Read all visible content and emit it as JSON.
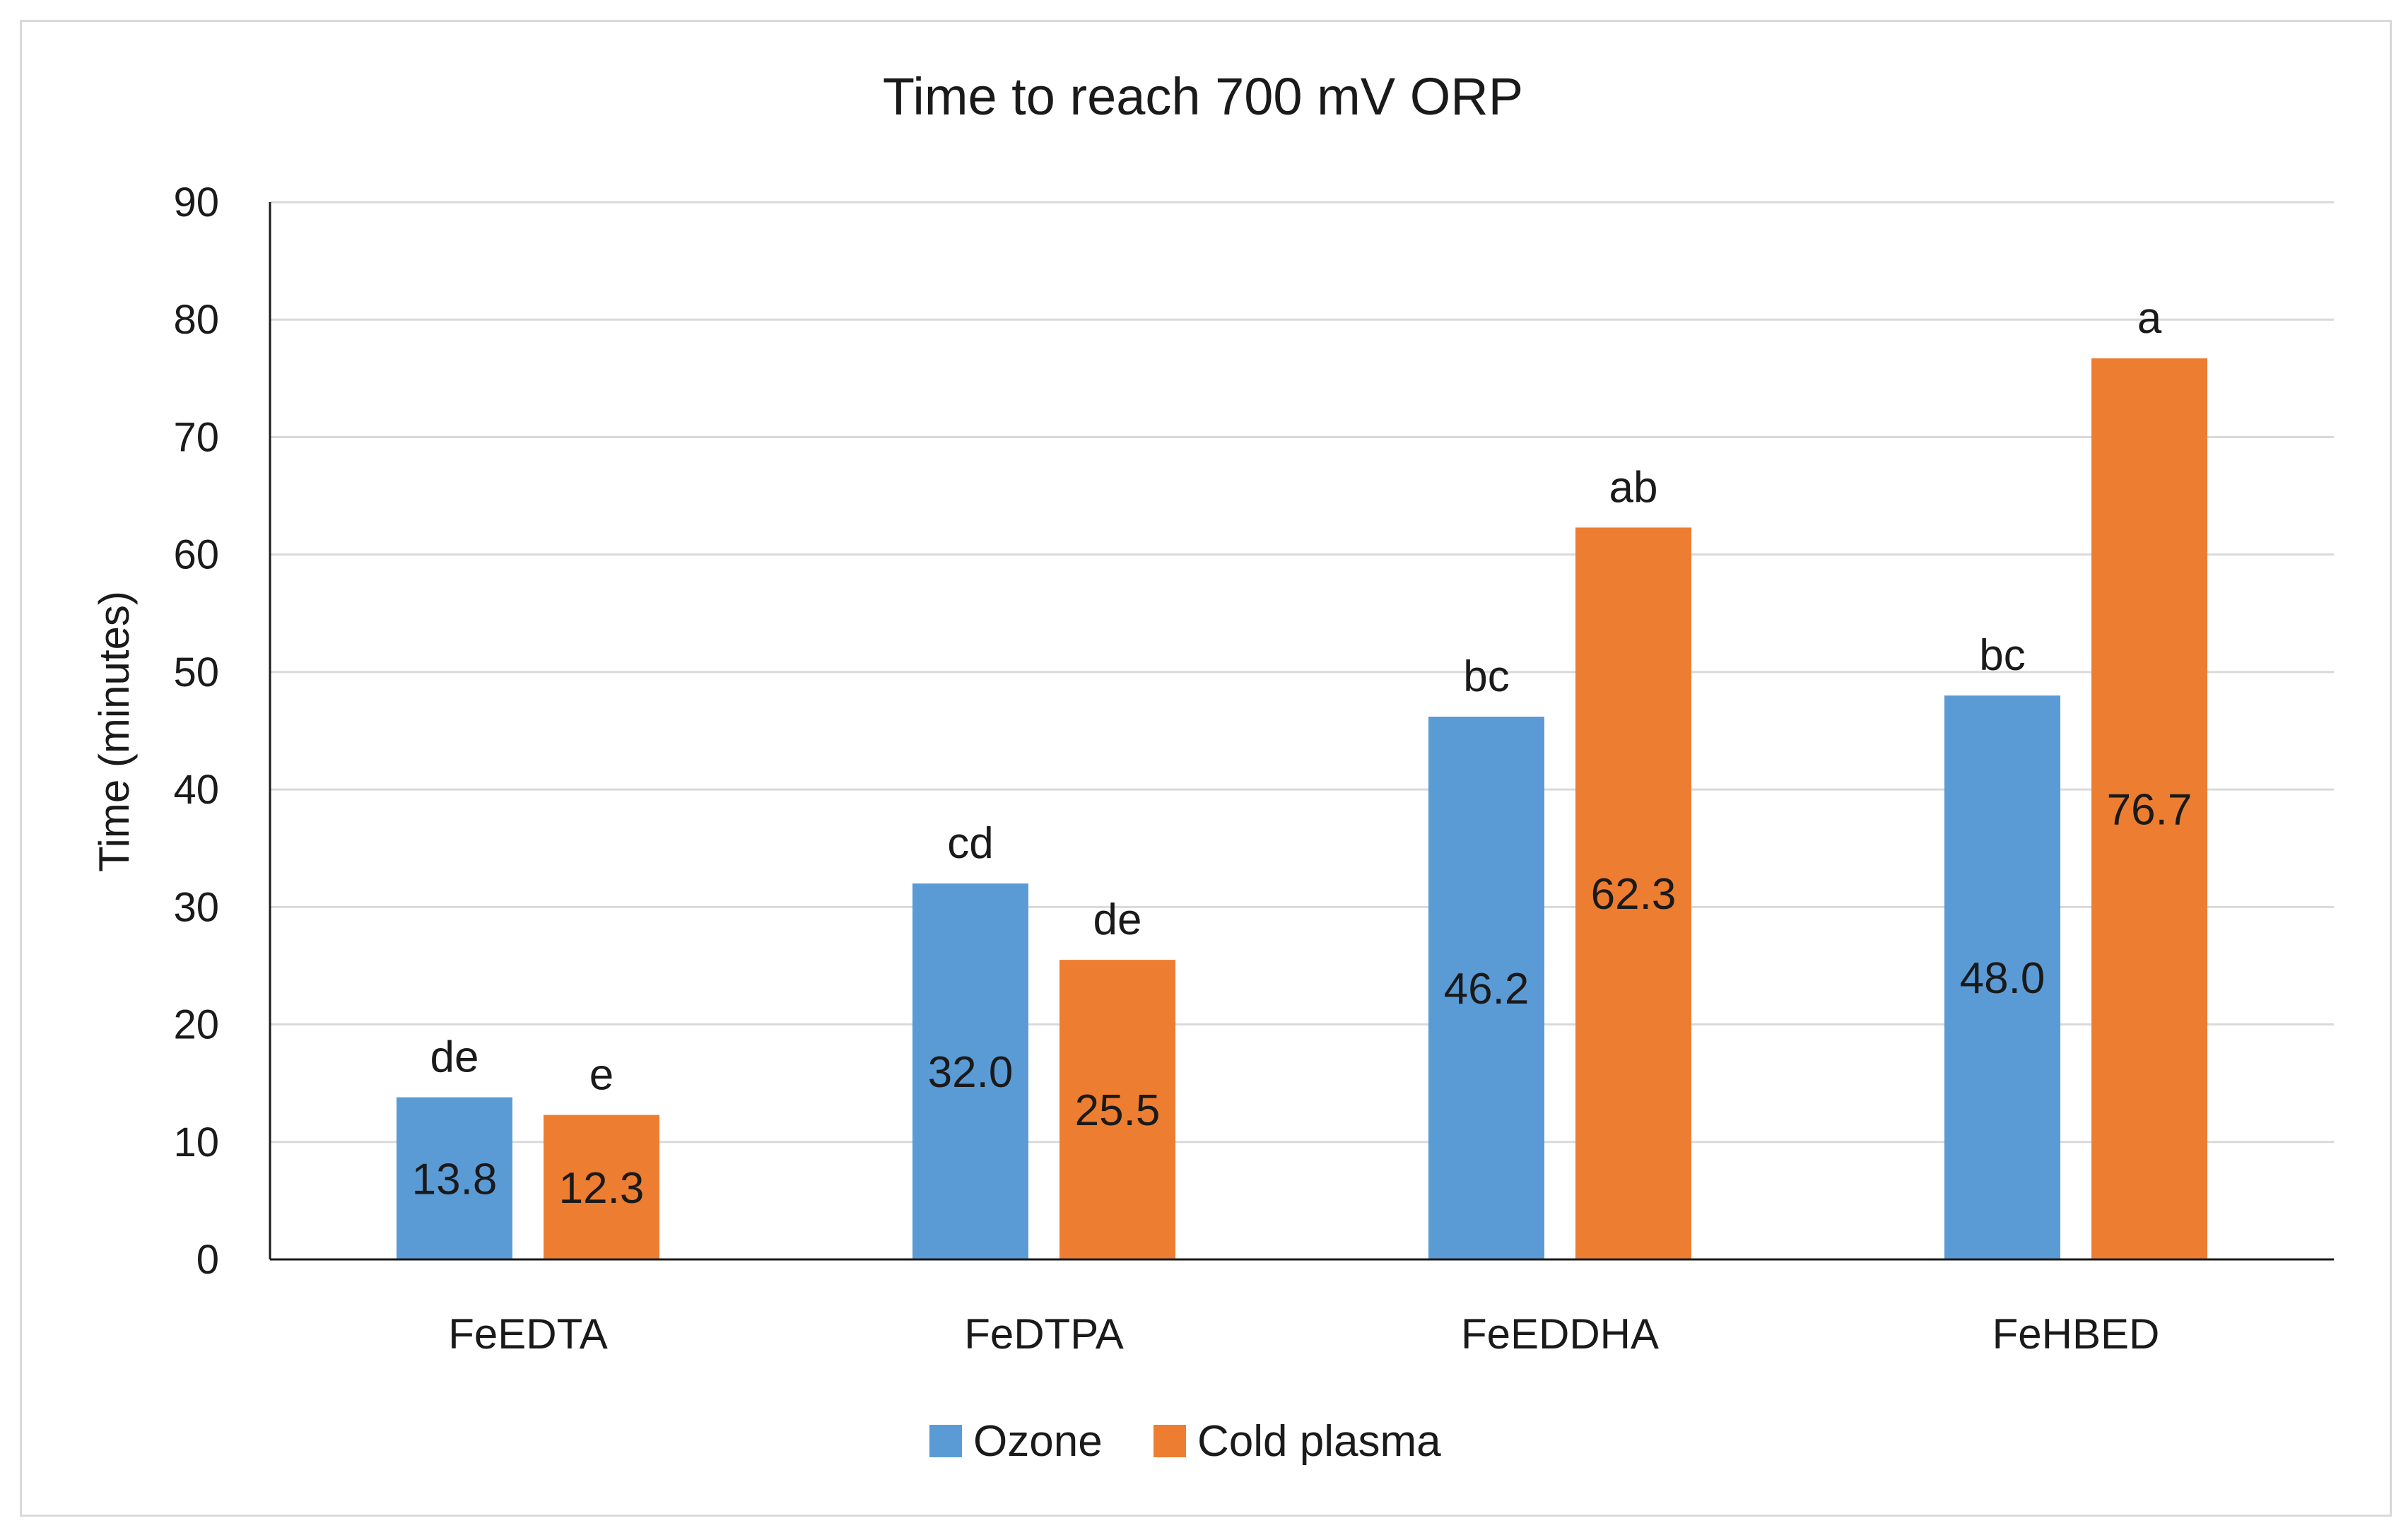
{
  "chart_data": {
    "type": "bar",
    "title": "Time to reach 700 mV ORP",
    "xlabel": "",
    "ylabel": "Time (minutes)",
    "ylim": [
      0,
      90
    ],
    "yticks": [
      0,
      10,
      20,
      30,
      40,
      50,
      60,
      70,
      80,
      90
    ],
    "grid": true,
    "legend_position": "bottom",
    "categories": [
      "FeEDTA",
      "FeDTPA",
      "FeEDDHA",
      "FeHBED"
    ],
    "series": [
      {
        "name": "Ozone",
        "color": "#5b9bd5",
        "values": [
          13.8,
          32.0,
          46.2,
          48.0
        ],
        "value_labels": [
          "13.8",
          "32.0",
          "46.2",
          "48.0"
        ],
        "significance": [
          "de",
          "cd",
          "bc",
          "bc"
        ]
      },
      {
        "name": "Cold plasma",
        "color": "#ed7d31",
        "values": [
          12.3,
          25.5,
          62.3,
          76.7
        ],
        "value_labels": [
          "12.3",
          "25.5",
          "62.3",
          "76.7"
        ],
        "significance": [
          "e",
          "de",
          "ab",
          "a"
        ]
      }
    ]
  }
}
